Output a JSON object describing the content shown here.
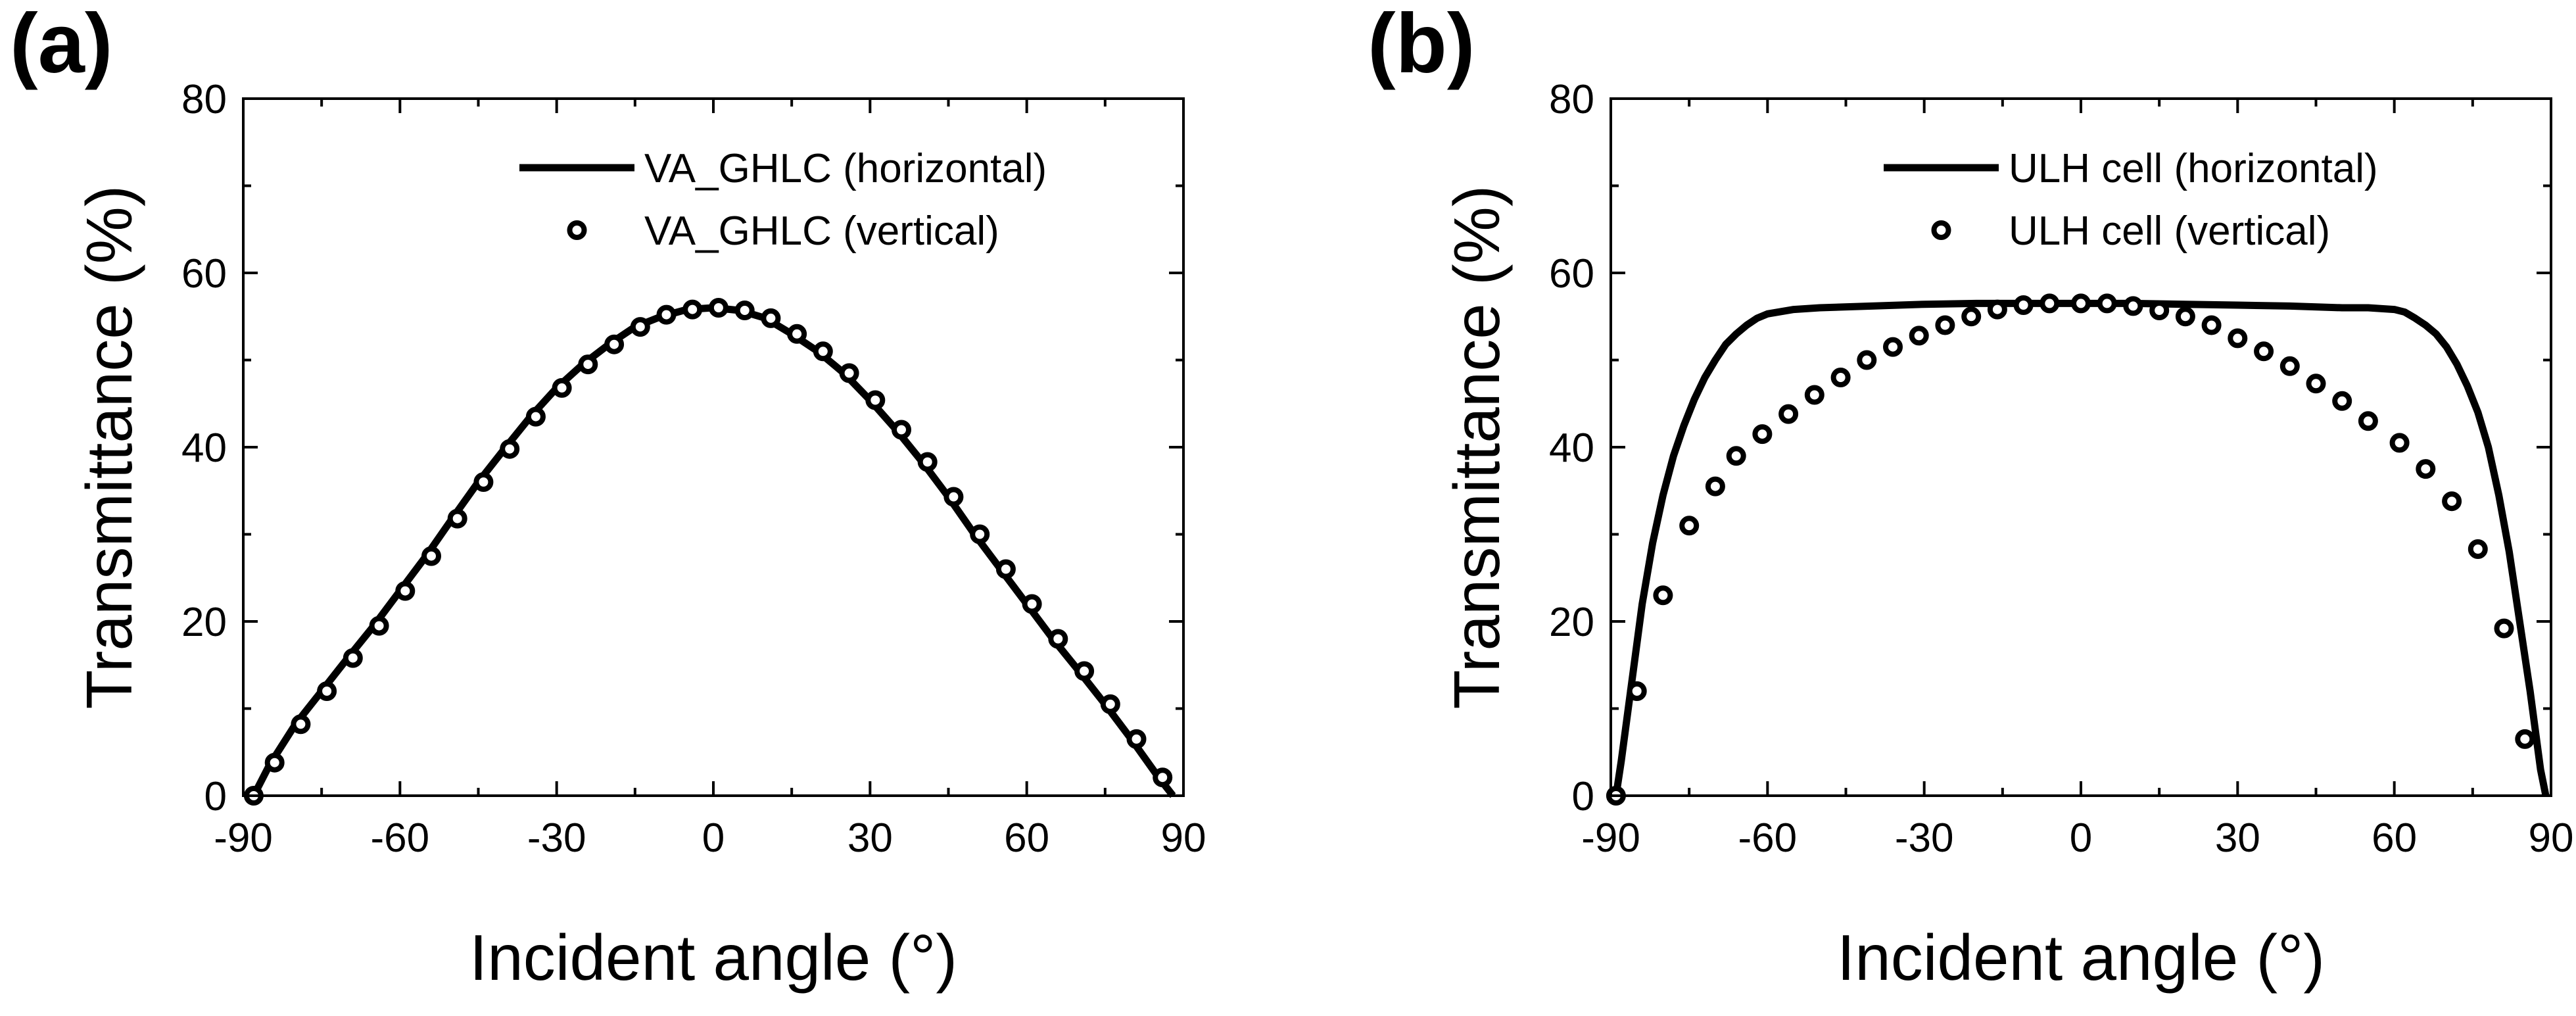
{
  "chart_data": [
    {
      "panel_label": "(a)",
      "type": "line",
      "xlabel": "Incident angle (°)",
      "ylabel": "Transmittance (%)",
      "xlim": [
        -90,
        90
      ],
      "ylim": [
        0,
        80
      ],
      "xticks": [
        -90,
        -60,
        -30,
        0,
        30,
        60,
        90
      ],
      "yticks": [
        0,
        20,
        40,
        60,
        80
      ],
      "legend_position": "top-right",
      "series": [
        {
          "name": "VA_GHLC (horizontal)",
          "style": "line",
          "x": [
            -88,
            -85,
            -80,
            -75,
            -70,
            -65,
            -60,
            -55,
            -50,
            -45,
            -40,
            -35,
            -30,
            -25,
            -20,
            -15,
            -10,
            -5,
            0,
            5,
            10,
            15,
            20,
            25,
            30,
            35,
            40,
            45,
            50,
            55,
            60,
            65,
            70,
            75,
            80,
            85,
            88
          ],
          "y": [
            0,
            3.5,
            8.2,
            12,
            15.8,
            19.5,
            23.5,
            27.5,
            31.8,
            36,
            39.8,
            43.5,
            46.8,
            49.5,
            51.8,
            53.8,
            55,
            55.8,
            56,
            55.7,
            54.8,
            53,
            51,
            48.5,
            45.4,
            42,
            38.3,
            34.3,
            30,
            26,
            22,
            18,
            14.3,
            10.5,
            6.5,
            2.3,
            0
          ]
        },
        {
          "name": "VA_GHLC (vertical)",
          "style": "markers",
          "x": [
            -88,
            -84,
            -79,
            -74,
            -69,
            -64,
            -59,
            -54,
            -49,
            -44,
            -39,
            -34,
            -29,
            -24,
            -19,
            -14,
            -9,
            -4,
            1,
            6,
            11,
            16,
            21,
            26,
            31,
            36,
            41,
            46,
            51,
            56,
            61,
            66,
            71,
            76,
            81,
            86
          ],
          "y": [
            0,
            3.8,
            8.2,
            12,
            15.8,
            19.5,
            23.5,
            27.5,
            31.8,
            36,
            39.8,
            43.5,
            46.8,
            49.5,
            51.8,
            53.8,
            55.2,
            55.8,
            56,
            55.7,
            54.8,
            53,
            51,
            48.5,
            45.4,
            42,
            38.3,
            34.3,
            30,
            26,
            22,
            18,
            14.3,
            10.5,
            6.5,
            2.1
          ]
        }
      ]
    },
    {
      "panel_label": "(b)",
      "type": "line",
      "xlabel": "Incident angle (°)",
      "ylabel": "Transmittance (%)",
      "xlim": [
        -90,
        90
      ],
      "ylim": [
        0,
        80
      ],
      "xticks": [
        -90,
        -60,
        -30,
        0,
        30,
        60,
        90
      ],
      "yticks": [
        0,
        20,
        40,
        60,
        80
      ],
      "legend_position": "top-right",
      "series": [
        {
          "name": "ULH cell (horizontal)",
          "style": "line",
          "x": [
            -89,
            -88,
            -86,
            -84,
            -82,
            -80,
            -78,
            -76,
            -74,
            -72,
            -70,
            -68,
            -66,
            -64,
            -62,
            -60,
            -55,
            -50,
            -40,
            -30,
            -20,
            -10,
            0,
            10,
            20,
            30,
            40,
            50,
            55,
            60,
            62,
            64,
            66,
            68,
            70,
            72,
            74,
            76,
            78,
            80,
            82,
            84,
            86,
            88,
            89
          ],
          "y": [
            0,
            4,
            13,
            22,
            29,
            34.5,
            39,
            42.5,
            45.5,
            48,
            50,
            51.8,
            53,
            54,
            54.8,
            55.3,
            55.8,
            56,
            56.2,
            56.4,
            56.5,
            56.5,
            56.5,
            56.5,
            56.4,
            56.3,
            56.2,
            56,
            56,
            55.8,
            55.5,
            54.8,
            54,
            53,
            51.5,
            49.5,
            47,
            44,
            40,
            34.5,
            28,
            20,
            12,
            3,
            0
          ]
        },
        {
          "name": "ULH cell (vertical)",
          "style": "markers",
          "x": [
            -89,
            -85,
            -80,
            -75,
            -70,
            -66,
            -61,
            -56,
            -51,
            -46,
            -41,
            -36,
            -31,
            -26,
            -21,
            -16,
            -11,
            -6,
            0,
            5,
            10,
            15,
            20,
            25,
            30,
            35,
            40,
            45,
            50,
            55,
            61,
            66,
            71,
            76,
            81,
            85
          ],
          "y": [
            0,
            12,
            23,
            31,
            35.5,
            39,
            41.5,
            43.8,
            46,
            48,
            50,
            51.5,
            52.8,
            54,
            55,
            55.8,
            56.3,
            56.5,
            56.5,
            56.5,
            56.2,
            55.7,
            55,
            54,
            52.5,
            51,
            49.3,
            47.3,
            45.3,
            43,
            40.5,
            37.5,
            33.8,
            28.3,
            19.2,
            6.5
          ]
        }
      ]
    }
  ]
}
